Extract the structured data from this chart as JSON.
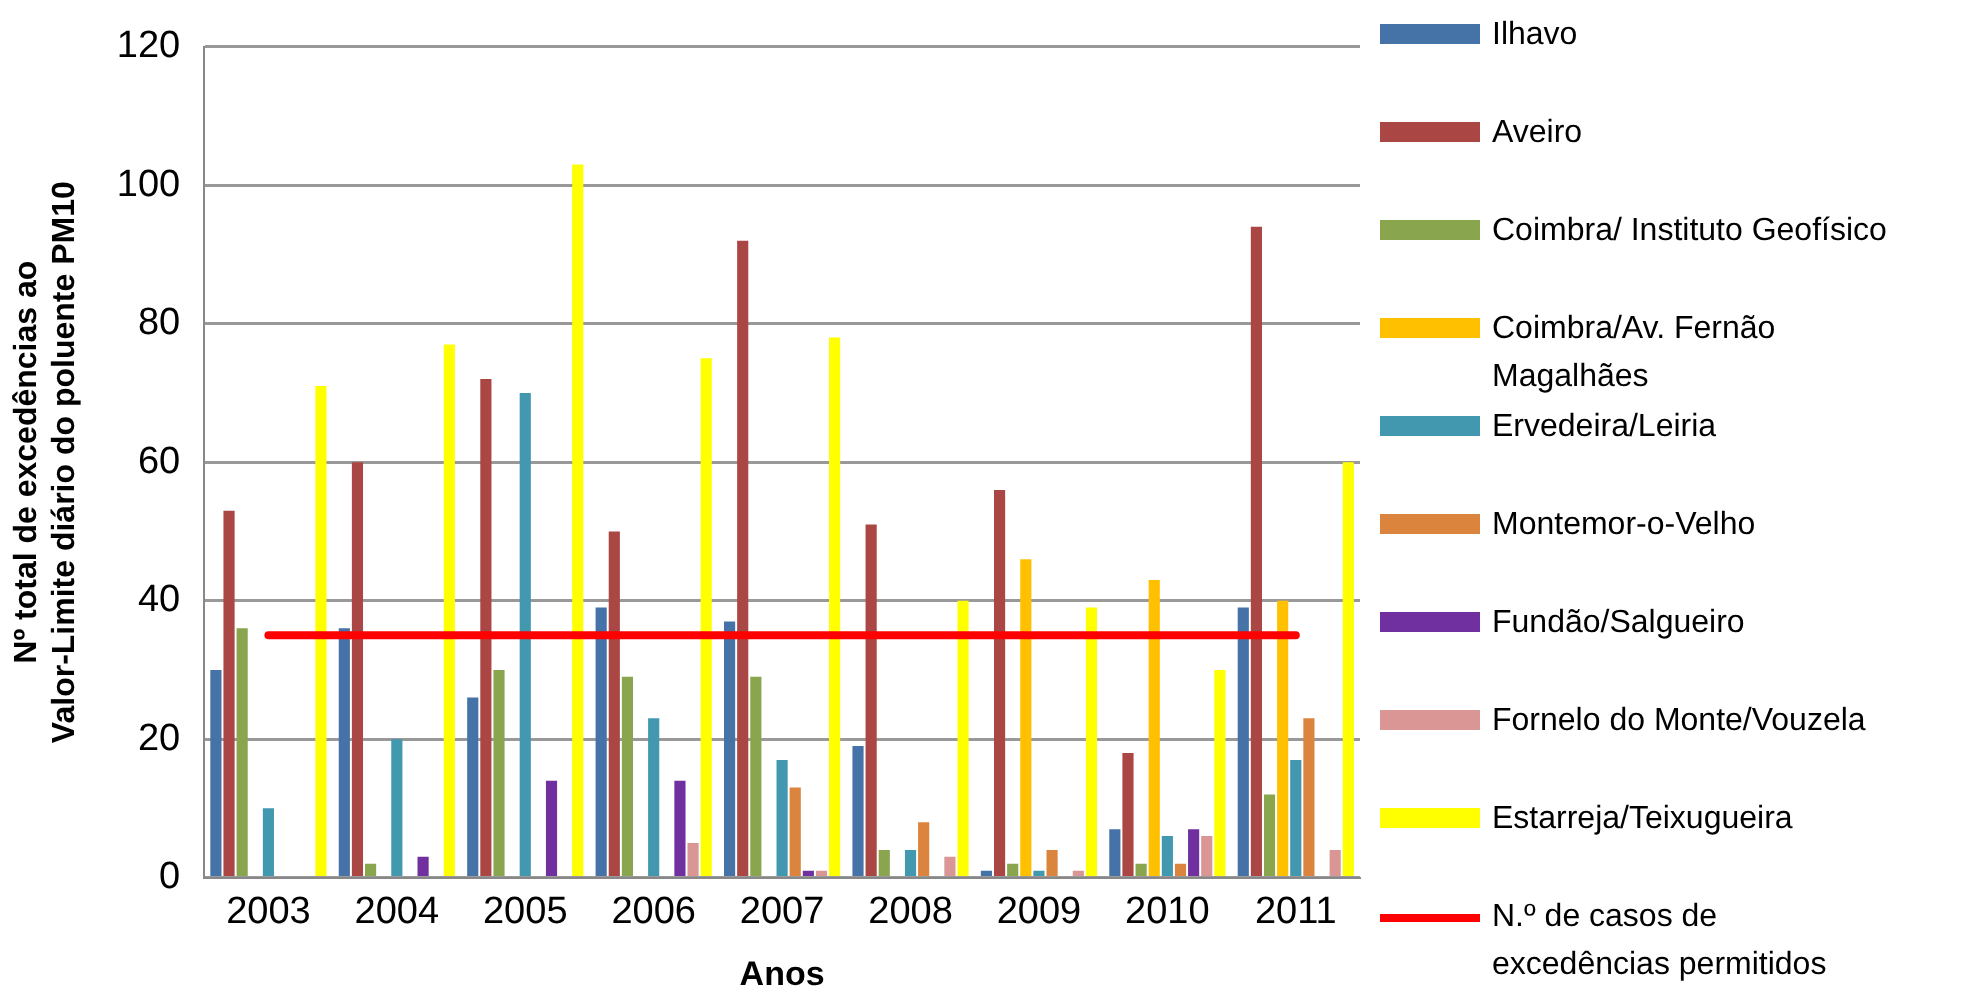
{
  "chart_data": {
    "type": "bar",
    "xlabel": "Anos",
    "ylabel": "Nº total de excedências ao Valor-Limite diário do poluente PM10",
    "categories": [
      "2003",
      "2004",
      "2005",
      "2006",
      "2007",
      "2008",
      "2009",
      "2010",
      "2011"
    ],
    "ylim": [
      0,
      120
    ],
    "yticks": [
      0,
      20,
      40,
      60,
      80,
      100,
      120
    ],
    "grid": "y",
    "legend": "right",
    "series": [
      {
        "name": "Ilhavo",
        "color": "#4572a7",
        "values": [
          30,
          36,
          26,
          39,
          37,
          19,
          1,
          7,
          39
        ]
      },
      {
        "name": "Aveiro",
        "color": "#aa4643",
        "values": [
          53,
          60,
          72,
          50,
          92,
          51,
          56,
          18,
          94
        ]
      },
      {
        "name": "Coimbra/ Instituto Geofísico",
        "color": "#89a54e",
        "values": [
          36,
          2,
          30,
          29,
          29,
          4,
          2,
          2,
          12
        ]
      },
      {
        "name": "Coimbra/Av. Fernão Magalhães",
        "color": "#ffc000",
        "values": [
          null,
          null,
          null,
          null,
          null,
          null,
          46,
          43,
          40
        ]
      },
      {
        "name": "Ervedeira/Leiria",
        "color": "#4198af",
        "values": [
          10,
          20,
          70,
          23,
          17,
          4,
          1,
          6,
          17
        ]
      },
      {
        "name": "Montemor-o-Velho",
        "color": "#db843d",
        "values": [
          null,
          null,
          null,
          null,
          13,
          8,
          4,
          2,
          23
        ]
      },
      {
        "name": "Fundão/Salgueiro",
        "color": "#71309f",
        "values": [
          null,
          3,
          14,
          14,
          1,
          null,
          null,
          7,
          null
        ]
      },
      {
        "name": "Fornelo do Monte/Vouzela",
        "color": "#d99694",
        "values": [
          null,
          null,
          null,
          5,
          1,
          3,
          1,
          6,
          4
        ]
      },
      {
        "name": "Estarreja/Teixugueira",
        "color": "#ffff00",
        "values": [
          71,
          77,
          103,
          75,
          78,
          40,
          39,
          30,
          60
        ]
      },
      {
        "name": "N.º de casos de excedências permitidos",
        "type": "line",
        "color": "#ff0000",
        "values": [
          35,
          35,
          35,
          35,
          35,
          35,
          35,
          35,
          35
        ]
      }
    ]
  }
}
